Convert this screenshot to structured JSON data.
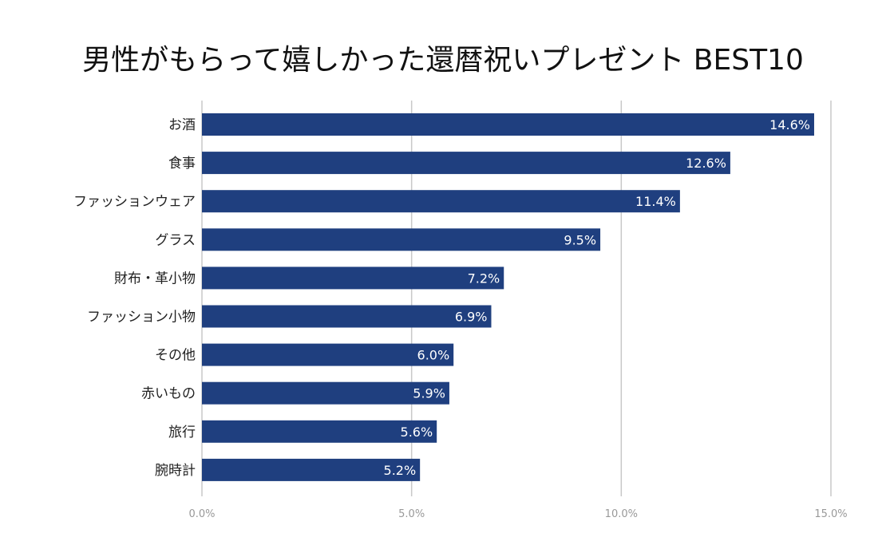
{
  "chart_data": {
    "type": "bar",
    "orientation": "horizontal",
    "title": "男性がもらって嬉しかった還暦祝いプレゼント BEST10",
    "categories": [
      "お酒",
      "食事",
      "ファッションウェア",
      "グラス",
      "財布・革小物",
      "ファッション小物",
      "その他",
      "赤いもの",
      "旅行",
      "腕時計"
    ],
    "values": [
      14.6,
      12.6,
      11.4,
      9.5,
      7.2,
      6.9,
      6.0,
      5.9,
      5.6,
      5.2
    ],
    "value_labels": [
      "14.6%",
      "12.6%",
      "11.4%",
      "9.5%",
      "7.2%",
      "6.9%",
      "6.0%",
      "5.9%",
      "5.6%",
      "5.2%"
    ],
    "xlim": [
      0,
      15
    ],
    "x_ticks": [
      0,
      5,
      10,
      15
    ],
    "x_tick_labels": [
      "0.0%",
      "5.0%",
      "10.0%",
      "15.0%"
    ],
    "grid": true,
    "colors": {
      "bar": "#1f3f7f",
      "grid": "#c8c8c8",
      "tick_label": "#999999",
      "category_label": "#222222",
      "value_label": "#ffffff"
    }
  }
}
